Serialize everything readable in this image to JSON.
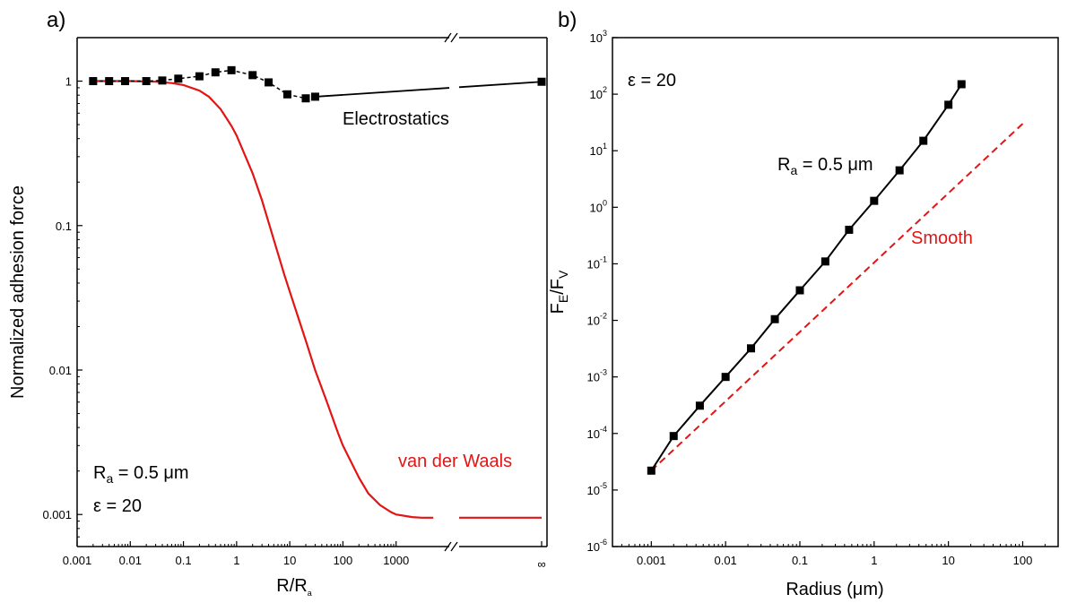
{
  "chart_data": [
    {
      "panel_label": "a)",
      "type": "line",
      "xlabel": {
        "main": "R/R",
        "sub": "a"
      },
      "ylabel": "Normalized adhesion force",
      "x_scale": "log (broken axis)",
      "y_scale": "log",
      "xlim": [
        0.001,
        10000
      ],
      "ylim": [
        0.0006,
        2
      ],
      "x_ticks": [
        "0.001",
        "0.01",
        "0.1",
        "1",
        "10",
        "100",
        "1000",
        "∞"
      ],
      "y_ticks": [
        "0.001",
        "0.01",
        "0.1",
        "1"
      ],
      "grid": false,
      "series": [
        {
          "name": "Electrostatics",
          "color": "#000000",
          "marker": "square",
          "x": [
            0.002,
            0.004,
            0.008,
            0.02,
            0.04,
            0.08,
            0.2,
            0.4,
            0.8,
            2,
            4,
            9,
            20,
            30
          ],
          "y": [
            1.0,
            1.0,
            1.0,
            1.0,
            1.01,
            1.04,
            1.08,
            1.15,
            1.19,
            1.1,
            0.98,
            0.81,
            0.76,
            0.78
          ],
          "x_infinity": 0.99
        },
        {
          "name": "van der Waals",
          "color": "#e31414",
          "x": [
            0.002,
            0.01,
            0.03,
            0.06,
            0.1,
            0.2,
            0.3,
            0.5,
            0.8,
            1,
            2,
            3,
            5,
            8,
            10,
            20,
            30,
            50,
            80,
            100,
            200,
            300,
            500,
            800,
            1000,
            2000,
            3000,
            5000
          ],
          "y": [
            1.0,
            1.0,
            0.99,
            0.97,
            0.94,
            0.86,
            0.78,
            0.64,
            0.49,
            0.42,
            0.23,
            0.15,
            0.08,
            0.045,
            0.035,
            0.016,
            0.01,
            0.006,
            0.0037,
            0.003,
            0.0018,
            0.0014,
            0.00116,
            0.00104,
            0.001,
            0.00096,
            0.00095,
            0.00095
          ],
          "x_infinity": 0.00095
        }
      ],
      "annotations": {
        "electrostatics": "Electrostatics",
        "vdw": "van der Waals",
        "ra_main": "R",
        "ra_sub": "a",
        "ra_rest": " = 0.5 μm",
        "eps": "ε = 20"
      }
    },
    {
      "panel_label": "b)",
      "type": "line",
      "xlabel": "Radius (μm)",
      "ylabel": {
        "main": "F",
        "sub1": "E",
        "mid": "/F",
        "sub2": "V"
      },
      "x_scale": "log",
      "y_scale": "log",
      "xlim": [
        0.0003,
        300
      ],
      "ylim": [
        1e-06,
        1000
      ],
      "x_ticks": [
        "0.001",
        "0.01",
        "0.1",
        "1",
        "10",
        "100"
      ],
      "y_ticks": [
        {
          "base": "10",
          "exp": "-6"
        },
        {
          "base": "10",
          "exp": "-5"
        },
        {
          "base": "10",
          "exp": "-4"
        },
        {
          "base": "10",
          "exp": "-3"
        },
        {
          "base": "10",
          "exp": "-2"
        },
        {
          "base": "10",
          "exp": "-1"
        },
        {
          "base": "10",
          "exp": "0"
        },
        {
          "base": "10",
          "exp": "1"
        },
        {
          "base": "10",
          "exp": "2"
        },
        {
          "base": "10",
          "exp": "3"
        }
      ],
      "grid": false,
      "series": [
        {
          "name": "R_a = 0.5 μm",
          "color": "#000000",
          "marker": "square",
          "x": [
            0.001,
            0.002,
            0.0045,
            0.01,
            0.022,
            0.046,
            0.1,
            0.22,
            0.46,
            1,
            2.2,
            4.6,
            10,
            15
          ],
          "y": [
            2.2e-05,
            9e-05,
            0.00031,
            0.001,
            0.0032,
            0.0105,
            0.034,
            0.11,
            0.4,
            1.3,
            4.5,
            15,
            65,
            150
          ]
        },
        {
          "name": "Smooth",
          "color": "#e31414",
          "dashed": true,
          "x": [
            0.001,
            100
          ],
          "y": [
            2.2e-05,
            30
          ]
        }
      ],
      "annotations": {
        "eps": "ε = 20",
        "ra_main": "R",
        "ra_sub": "a",
        "ra_rest": " = 0.5 μm",
        "smooth": "Smooth"
      }
    }
  ]
}
